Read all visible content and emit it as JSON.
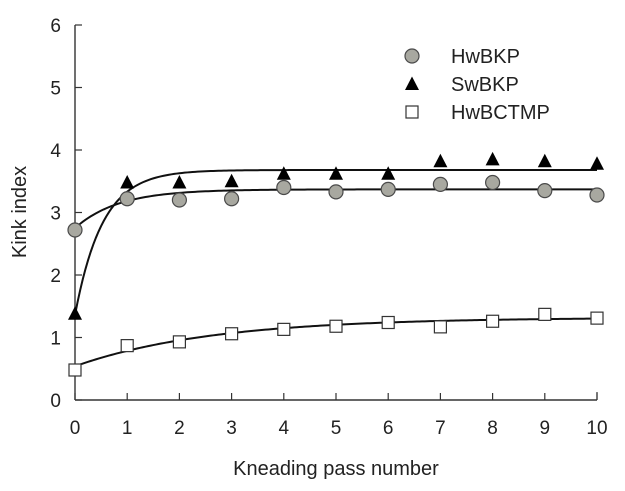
{
  "chart_data": {
    "type": "scatter",
    "title": "",
    "xlabel": "Kneading pass number",
    "ylabel": "Kink index",
    "xlim": [
      0,
      10
    ],
    "ylim": [
      0,
      6
    ],
    "xticks": [
      0,
      1,
      2,
      3,
      4,
      5,
      6,
      7,
      8,
      9,
      10
    ],
    "yticks": [
      0,
      1,
      2,
      3,
      4,
      5,
      6
    ],
    "grid": false,
    "legend_position": "top-right",
    "series": [
      {
        "name": "HwBKP",
        "marker": "circle",
        "color": "#a8a8a0",
        "x": [
          0,
          1,
          2,
          3,
          4,
          5,
          6,
          7,
          8,
          9,
          10
        ],
        "values": [
          2.72,
          3.22,
          3.2,
          3.22,
          3.4,
          3.33,
          3.37,
          3.45,
          3.48,
          3.35,
          3.28
        ],
        "fit": {
          "a": 3.37,
          "b": 0.62,
          "k": 1.2
        }
      },
      {
        "name": "SwBKP",
        "marker": "triangle",
        "color": "#000000",
        "x": [
          0,
          1,
          2,
          3,
          4,
          5,
          6,
          7,
          8,
          9,
          10
        ],
        "values": [
          1.38,
          3.48,
          3.48,
          3.5,
          3.62,
          3.62,
          3.62,
          3.82,
          3.85,
          3.82,
          3.78
        ],
        "fit": {
          "a": 3.68,
          "b": 2.32,
          "k": 1.9
        }
      },
      {
        "name": "HwBCTMP",
        "marker": "square",
        "color": "#ffffff",
        "x": [
          0,
          1,
          2,
          3,
          4,
          5,
          6,
          7,
          8,
          9,
          10
        ],
        "values": [
          0.48,
          0.87,
          0.93,
          1.06,
          1.13,
          1.18,
          1.24,
          1.17,
          1.26,
          1.37,
          1.31
        ],
        "fit": {
          "a": 1.32,
          "b": 0.78,
          "k": 0.38
        }
      }
    ]
  }
}
